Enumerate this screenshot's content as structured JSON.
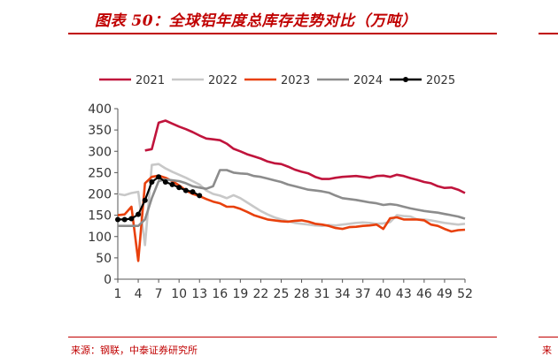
{
  "header": {
    "title": "图表 50：全球铝年度总库存走势对比（万吨）"
  },
  "footer": {
    "source": "来源：钢联，中泰证券研究所",
    "neighbor_source_fragment": "来"
  },
  "chart_data": {
    "type": "line",
    "title": "",
    "xlabel": "",
    "ylabel": "",
    "ylim": [
      0,
      400
    ],
    "yticks": [
      0,
      50,
      100,
      150,
      200,
      250,
      300,
      350,
      400
    ],
    "xticks": [
      1,
      4,
      7,
      10,
      13,
      16,
      19,
      22,
      25,
      28,
      31,
      34,
      37,
      40,
      43,
      46,
      49,
      52
    ],
    "xlim": [
      1,
      52
    ],
    "grid": false,
    "legend_position": "top",
    "series": [
      {
        "name": "2021",
        "color": "#c0143c",
        "points": [
          [
            5,
            302
          ],
          [
            6,
            305
          ],
          [
            7,
            367
          ],
          [
            8,
            372
          ],
          [
            9,
            365
          ],
          [
            10,
            358
          ],
          [
            11,
            352
          ],
          [
            12,
            345
          ],
          [
            13,
            337
          ],
          [
            14,
            330
          ],
          [
            15,
            328
          ],
          [
            16,
            326
          ],
          [
            17,
            318
          ],
          [
            18,
            306
          ],
          [
            19,
            300
          ],
          [
            20,
            293
          ],
          [
            21,
            288
          ],
          [
            22,
            283
          ],
          [
            23,
            276
          ],
          [
            24,
            272
          ],
          [
            25,
            270
          ],
          [
            26,
            264
          ],
          [
            27,
            257
          ],
          [
            28,
            252
          ],
          [
            29,
            248
          ],
          [
            30,
            240
          ],
          [
            31,
            235
          ],
          [
            32,
            235
          ],
          [
            33,
            238
          ],
          [
            34,
            240
          ],
          [
            35,
            241
          ],
          [
            36,
            242
          ],
          [
            37,
            240
          ],
          [
            38,
            238
          ],
          [
            39,
            242
          ],
          [
            40,
            243
          ],
          [
            41,
            240
          ],
          [
            42,
            245
          ],
          [
            43,
            242
          ],
          [
            44,
            237
          ],
          [
            45,
            233
          ],
          [
            46,
            228
          ],
          [
            47,
            225
          ],
          [
            48,
            218
          ],
          [
            49,
            214
          ],
          [
            50,
            215
          ],
          [
            51,
            210
          ],
          [
            52,
            202
          ]
        ]
      },
      {
        "name": "2022",
        "color": "#c8c8c8",
        "points": [
          [
            1,
            200
          ],
          [
            2,
            197
          ],
          [
            3,
            202
          ],
          [
            4,
            205
          ],
          [
            5,
            80
          ],
          [
            6,
            268
          ],
          [
            7,
            270
          ],
          [
            8,
            260
          ],
          [
            9,
            252
          ],
          [
            10,
            245
          ],
          [
            11,
            238
          ],
          [
            12,
            230
          ],
          [
            13,
            222
          ],
          [
            14,
            208
          ],
          [
            15,
            200
          ],
          [
            16,
            196
          ],
          [
            17,
            190
          ],
          [
            18,
            197
          ],
          [
            19,
            190
          ],
          [
            20,
            180
          ],
          [
            21,
            170
          ],
          [
            22,
            160
          ],
          [
            23,
            152
          ],
          [
            24,
            145
          ],
          [
            25,
            140
          ],
          [
            26,
            136
          ],
          [
            27,
            132
          ],
          [
            28,
            130
          ],
          [
            29,
            128
          ],
          [
            30,
            126
          ],
          [
            31,
            125
          ],
          [
            32,
            127
          ],
          [
            33,
            126
          ],
          [
            34,
            128
          ],
          [
            35,
            130
          ],
          [
            36,
            132
          ],
          [
            37,
            133
          ],
          [
            38,
            132
          ],
          [
            39,
            130
          ],
          [
            40,
            131
          ],
          [
            41,
            134
          ],
          [
            42,
            150
          ],
          [
            43,
            148
          ],
          [
            44,
            147
          ],
          [
            45,
            140
          ],
          [
            46,
            140
          ],
          [
            47,
            138
          ],
          [
            48,
            135
          ],
          [
            49,
            132
          ],
          [
            50,
            130
          ],
          [
            51,
            128
          ],
          [
            52,
            130
          ]
        ]
      },
      {
        "name": "2023",
        "color": "#e8400c",
        "points": [
          [
            1,
            150
          ],
          [
            2,
            152
          ],
          [
            3,
            170
          ],
          [
            4,
            43
          ],
          [
            5,
            225
          ],
          [
            6,
            240
          ],
          [
            7,
            243
          ],
          [
            8,
            238
          ],
          [
            9,
            230
          ],
          [
            10,
            220
          ],
          [
            11,
            208
          ],
          [
            12,
            200
          ],
          [
            13,
            195
          ],
          [
            14,
            188
          ],
          [
            15,
            182
          ],
          [
            16,
            178
          ],
          [
            17,
            170
          ],
          [
            18,
            170
          ],
          [
            19,
            165
          ],
          [
            20,
            158
          ],
          [
            21,
            150
          ],
          [
            22,
            145
          ],
          [
            23,
            140
          ],
          [
            24,
            138
          ],
          [
            25,
            136
          ],
          [
            26,
            135
          ],
          [
            27,
            137
          ],
          [
            28,
            138
          ],
          [
            29,
            135
          ],
          [
            30,
            130
          ],
          [
            31,
            128
          ],
          [
            32,
            125
          ],
          [
            33,
            120
          ],
          [
            34,
            118
          ],
          [
            35,
            122
          ],
          [
            36,
            123
          ],
          [
            37,
            125
          ],
          [
            38,
            126
          ],
          [
            39,
            128
          ],
          [
            40,
            118
          ],
          [
            41,
            143
          ],
          [
            42,
            145
          ],
          [
            43,
            140
          ],
          [
            44,
            140
          ],
          [
            45,
            140
          ],
          [
            46,
            138
          ],
          [
            47,
            128
          ],
          [
            48,
            125
          ],
          [
            49,
            118
          ],
          [
            50,
            112
          ],
          [
            51,
            115
          ],
          [
            52,
            116
          ]
        ]
      },
      {
        "name": "2024",
        "color": "#8c8c8c",
        "points": [
          [
            1,
            125
          ],
          [
            2,
            125
          ],
          [
            3,
            125
          ],
          [
            4,
            125
          ],
          [
            5,
            140
          ],
          [
            6,
            190
          ],
          [
            7,
            230
          ],
          [
            8,
            234
          ],
          [
            9,
            232
          ],
          [
            10,
            230
          ],
          [
            11,
            225
          ],
          [
            12,
            218
          ],
          [
            13,
            215
          ],
          [
            14,
            212
          ],
          [
            15,
            218
          ],
          [
            16,
            256
          ],
          [
            17,
            256
          ],
          [
            18,
            250
          ],
          [
            19,
            248
          ],
          [
            20,
            247
          ],
          [
            21,
            242
          ],
          [
            22,
            240
          ],
          [
            23,
            236
          ],
          [
            24,
            232
          ],
          [
            25,
            228
          ],
          [
            26,
            222
          ],
          [
            27,
            218
          ],
          [
            28,
            214
          ],
          [
            29,
            210
          ],
          [
            30,
            208
          ],
          [
            31,
            206
          ],
          [
            32,
            203
          ],
          [
            33,
            196
          ],
          [
            34,
            190
          ],
          [
            35,
            188
          ],
          [
            36,
            186
          ],
          [
            37,
            183
          ],
          [
            38,
            180
          ],
          [
            39,
            178
          ],
          [
            40,
            174
          ],
          [
            41,
            176
          ],
          [
            42,
            174
          ],
          [
            43,
            170
          ],
          [
            44,
            166
          ],
          [
            45,
            163
          ],
          [
            46,
            160
          ],
          [
            47,
            158
          ],
          [
            48,
            156
          ],
          [
            49,
            153
          ],
          [
            50,
            150
          ],
          [
            51,
            147
          ],
          [
            52,
            142
          ]
        ]
      },
      {
        "name": "2025",
        "color": "#000000",
        "markers": true,
        "points": [
          [
            1,
            140
          ],
          [
            2,
            140
          ],
          [
            3,
            142
          ],
          [
            4,
            152
          ],
          [
            5,
            185
          ],
          [
            6,
            228
          ],
          [
            7,
            240
          ],
          [
            8,
            228
          ],
          [
            9,
            222
          ],
          [
            10,
            215
          ],
          [
            11,
            208
          ],
          [
            12,
            205
          ],
          [
            13,
            196
          ]
        ]
      }
    ]
  }
}
